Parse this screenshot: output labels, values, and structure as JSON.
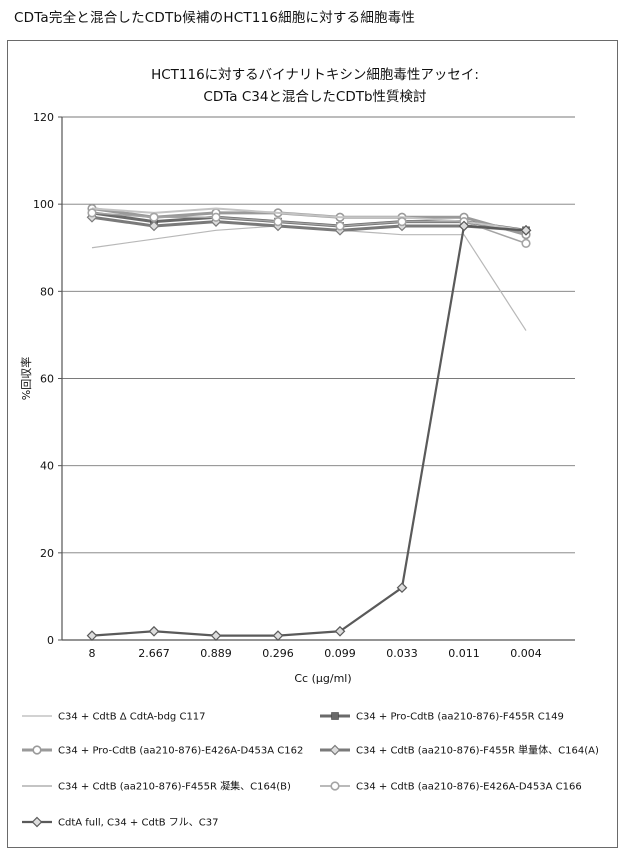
{
  "figure_title": "CDTa完全と混合したCDTb候補のHCT116細胞に対する細胞毒性",
  "chart_data": {
    "type": "line",
    "title_line1": "HCT116に対するバイナリトキシン細胞毒性アッセイ:",
    "title_line2": "CDTa C34と混合したCDTb性質検討",
    "xlabel": "Cc (μg/ml)",
    "ylabel": "%回収率",
    "categories": [
      "8",
      "2.667",
      "0.889",
      "0.296",
      "0.099",
      "0.033",
      "0.011",
      "0.004"
    ],
    "ylim": [
      0,
      120
    ],
    "yticks": [
      0,
      20,
      40,
      60,
      80,
      100,
      120
    ],
    "grid": "horizontal",
    "legend_position": "bottom",
    "series": [
      {
        "name": "C34 + CdtB Δ CdtA-bdg C117",
        "color": "#b8b8b8",
        "width": 1.2,
        "marker": "none",
        "values": [
          90,
          92,
          94,
          95,
          94,
          93,
          93,
          71
        ]
      },
      {
        "name": "C34 + Pro-CdtB (aa210-876)-F455R C149",
        "color": "#6a6a6a",
        "width": 3,
        "marker": "square",
        "values": [
          98,
          96,
          97,
          96,
          95,
          96,
          96,
          94
        ]
      },
      {
        "name": "C34 + Pro-CdtB (aa210-876)-E426A-D453A C162",
        "color": "#9a9a9a",
        "width": 3,
        "marker": "circle",
        "values": [
          99,
          97,
          98,
          98,
          97,
          97,
          97,
          93
        ]
      },
      {
        "name": "C34 + CdtB (aa210-876)-F455R 単量体、C164(A)",
        "color": "#7a7a7a",
        "width": 3,
        "marker": "diamond",
        "values": [
          97,
          95,
          96,
          95,
          94,
          95,
          95,
          94
        ]
      },
      {
        "name": "C34 + CdtB (aa210-876)-F455R 凝集、C164(B)",
        "color": "#c4c4c4",
        "width": 2,
        "marker": "none",
        "values": [
          99,
          98,
          99,
          98,
          97,
          97,
          96,
          94
        ]
      },
      {
        "name": "C34 + CdtB (aa210-876)-E426A-D453A C166",
        "color": "#a4a4a4",
        "width": 1.5,
        "marker": "circle",
        "values": [
          98,
          97,
          97,
          96,
          95,
          96,
          96,
          91
        ]
      },
      {
        "name": "CdtA full, C34 + CdtB フル、C37",
        "color": "#5a5a5a",
        "width": 2.2,
        "marker": "diamond",
        "values": [
          1,
          2,
          1,
          1,
          2,
          12,
          95,
          94
        ]
      }
    ]
  }
}
